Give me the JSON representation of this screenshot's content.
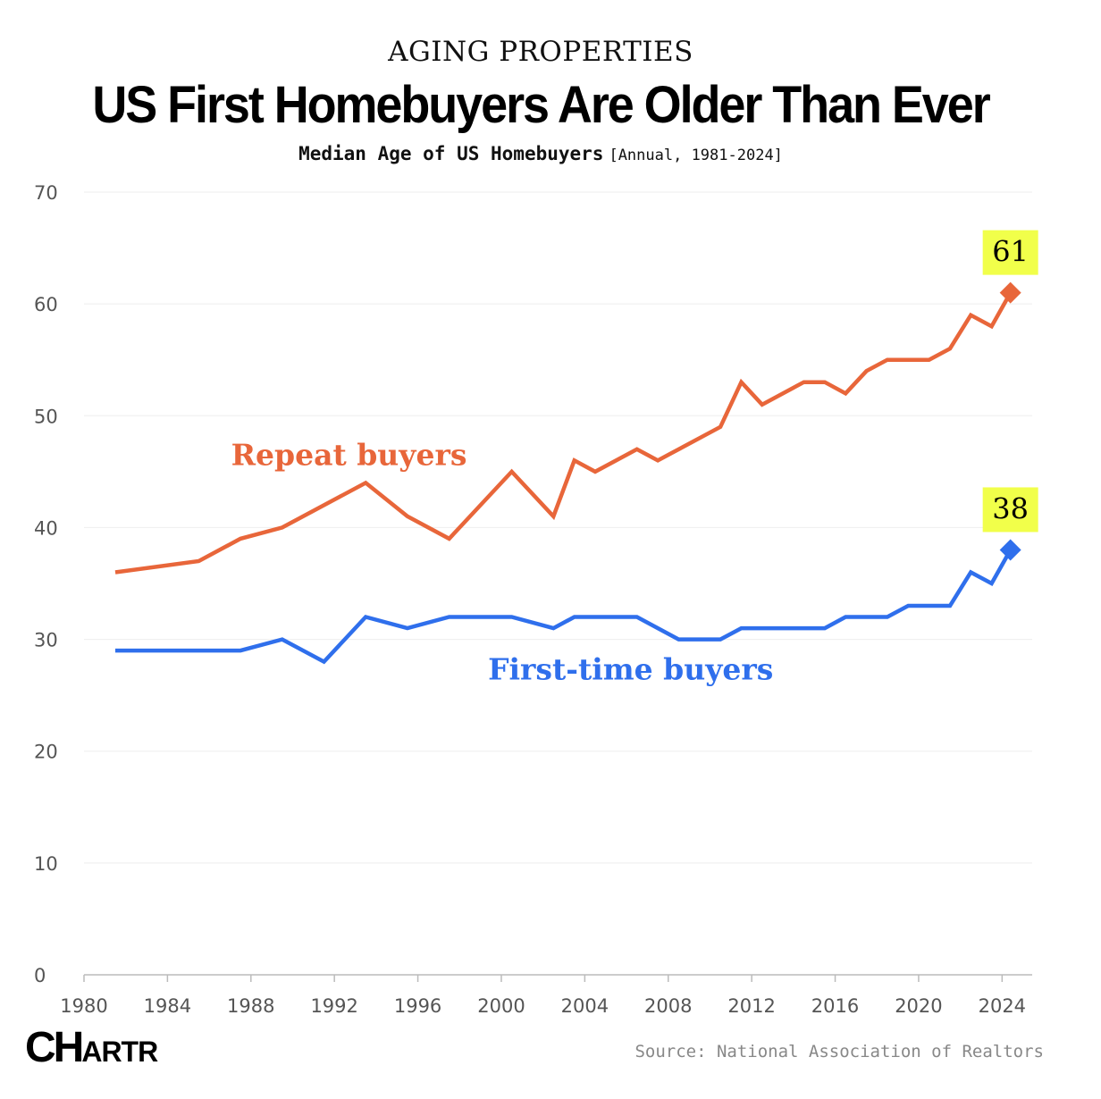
{
  "kicker": "AGING PROPERTIES",
  "title": "US First Homebuyers Are Older Than Ever",
  "subtitle": "Median Age of US Homebuyers",
  "subtitle_note": "[Annual, 1981-2024]",
  "source": "Source: National Association of Realtors",
  "logo": {
    "big": "CH",
    "small": "ARTR"
  },
  "colors": {
    "repeat": "#e8663a",
    "first_time": "#2f6fec",
    "callout_bg": "#f1ff4a",
    "grid": "#eeeeee",
    "axis": "#bbbbbb"
  },
  "chart_data": {
    "type": "line",
    "title": "Median Age of US Homebuyers",
    "xlim": [
      1980,
      2024.8
    ],
    "ylim": [
      0,
      70
    ],
    "x_ticks": [
      1980,
      1984,
      1988,
      1992,
      1996,
      2000,
      2004,
      2008,
      2012,
      2016,
      2020,
      2024
    ],
    "y_ticks": [
      0,
      10,
      20,
      30,
      40,
      50,
      60,
      70
    ],
    "grid": true,
    "series": [
      {
        "name": "Repeat buyers",
        "color": "#e8663a",
        "label_at": {
          "x": 1992.7,
          "y": 45.6
        },
        "points": [
          [
            1981.5,
            36
          ],
          [
            1985.5,
            37
          ],
          [
            1987.5,
            39
          ],
          [
            1989.5,
            40
          ],
          [
            1993.5,
            44
          ],
          [
            1995.5,
            41
          ],
          [
            1997.5,
            39
          ],
          [
            2000.5,
            45
          ],
          [
            2002.5,
            41
          ],
          [
            2003.5,
            46
          ],
          [
            2004.5,
            45
          ],
          [
            2006.5,
            47
          ],
          [
            2007.5,
            46
          ],
          [
            2010.5,
            49
          ],
          [
            2011.5,
            53
          ],
          [
            2012.5,
            51
          ],
          [
            2014.5,
            53
          ],
          [
            2015.5,
            53
          ],
          [
            2016.5,
            52
          ],
          [
            2017.5,
            54
          ],
          [
            2018.5,
            55
          ],
          [
            2020.5,
            55
          ],
          [
            2021.5,
            56
          ],
          [
            2022.5,
            59
          ],
          [
            2023.5,
            58
          ],
          [
            2024.4,
            61
          ]
        ],
        "end_label": "61"
      },
      {
        "name": "First-time buyers",
        "color": "#2f6fec",
        "label_at": {
          "x": 2006.2,
          "y": 26.4
        },
        "points": [
          [
            1981.5,
            29
          ],
          [
            1987.5,
            29
          ],
          [
            1989.5,
            30
          ],
          [
            1991.5,
            28
          ],
          [
            1993.5,
            32
          ],
          [
            1995.5,
            31
          ],
          [
            1997.5,
            32
          ],
          [
            2000.5,
            32
          ],
          [
            2002.5,
            31
          ],
          [
            2003.5,
            32
          ],
          [
            2006.5,
            32
          ],
          [
            2008.5,
            30
          ],
          [
            2010.5,
            30
          ],
          [
            2011.5,
            31
          ],
          [
            2015.5,
            31
          ],
          [
            2016.5,
            32
          ],
          [
            2018.5,
            32
          ],
          [
            2019.5,
            33
          ],
          [
            2021.5,
            33
          ],
          [
            2022.5,
            36
          ],
          [
            2023.5,
            35
          ],
          [
            2024.4,
            38
          ]
        ],
        "end_label": "38"
      }
    ]
  }
}
